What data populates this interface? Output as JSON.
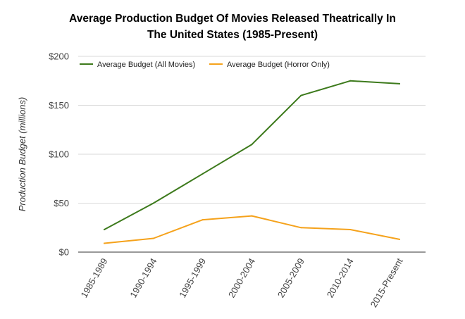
{
  "chart_data": {
    "type": "line",
    "title_lines": [
      "Average Production Budget Of Movies Released Theatrically In",
      "The United States (1985-Present)"
    ],
    "xlabel": "",
    "ylabel": "Production Budget (millions)",
    "categories": [
      "1985-1989",
      "1990-1994",
      "1995-1999",
      "2000-2004",
      "2005-2009",
      "2010-2014",
      "2015-Present"
    ],
    "ylim": [
      0,
      200
    ],
    "y_ticks": [
      0,
      50,
      100,
      150,
      200
    ],
    "y_tick_labels": [
      "$0",
      "$50",
      "$100",
      "$150",
      "$200"
    ],
    "grid": true,
    "legend_position": "top-left",
    "series": [
      {
        "name": "Average Budget (All Movies)",
        "color": "#3d7a1c",
        "values": [
          23,
          50,
          80,
          110,
          160,
          175,
          172
        ]
      },
      {
        "name": "Average Budget (Horror Only)",
        "color": "#f5a21b",
        "values": [
          9,
          14,
          33,
          37,
          25,
          23,
          13
        ]
      }
    ]
  }
}
